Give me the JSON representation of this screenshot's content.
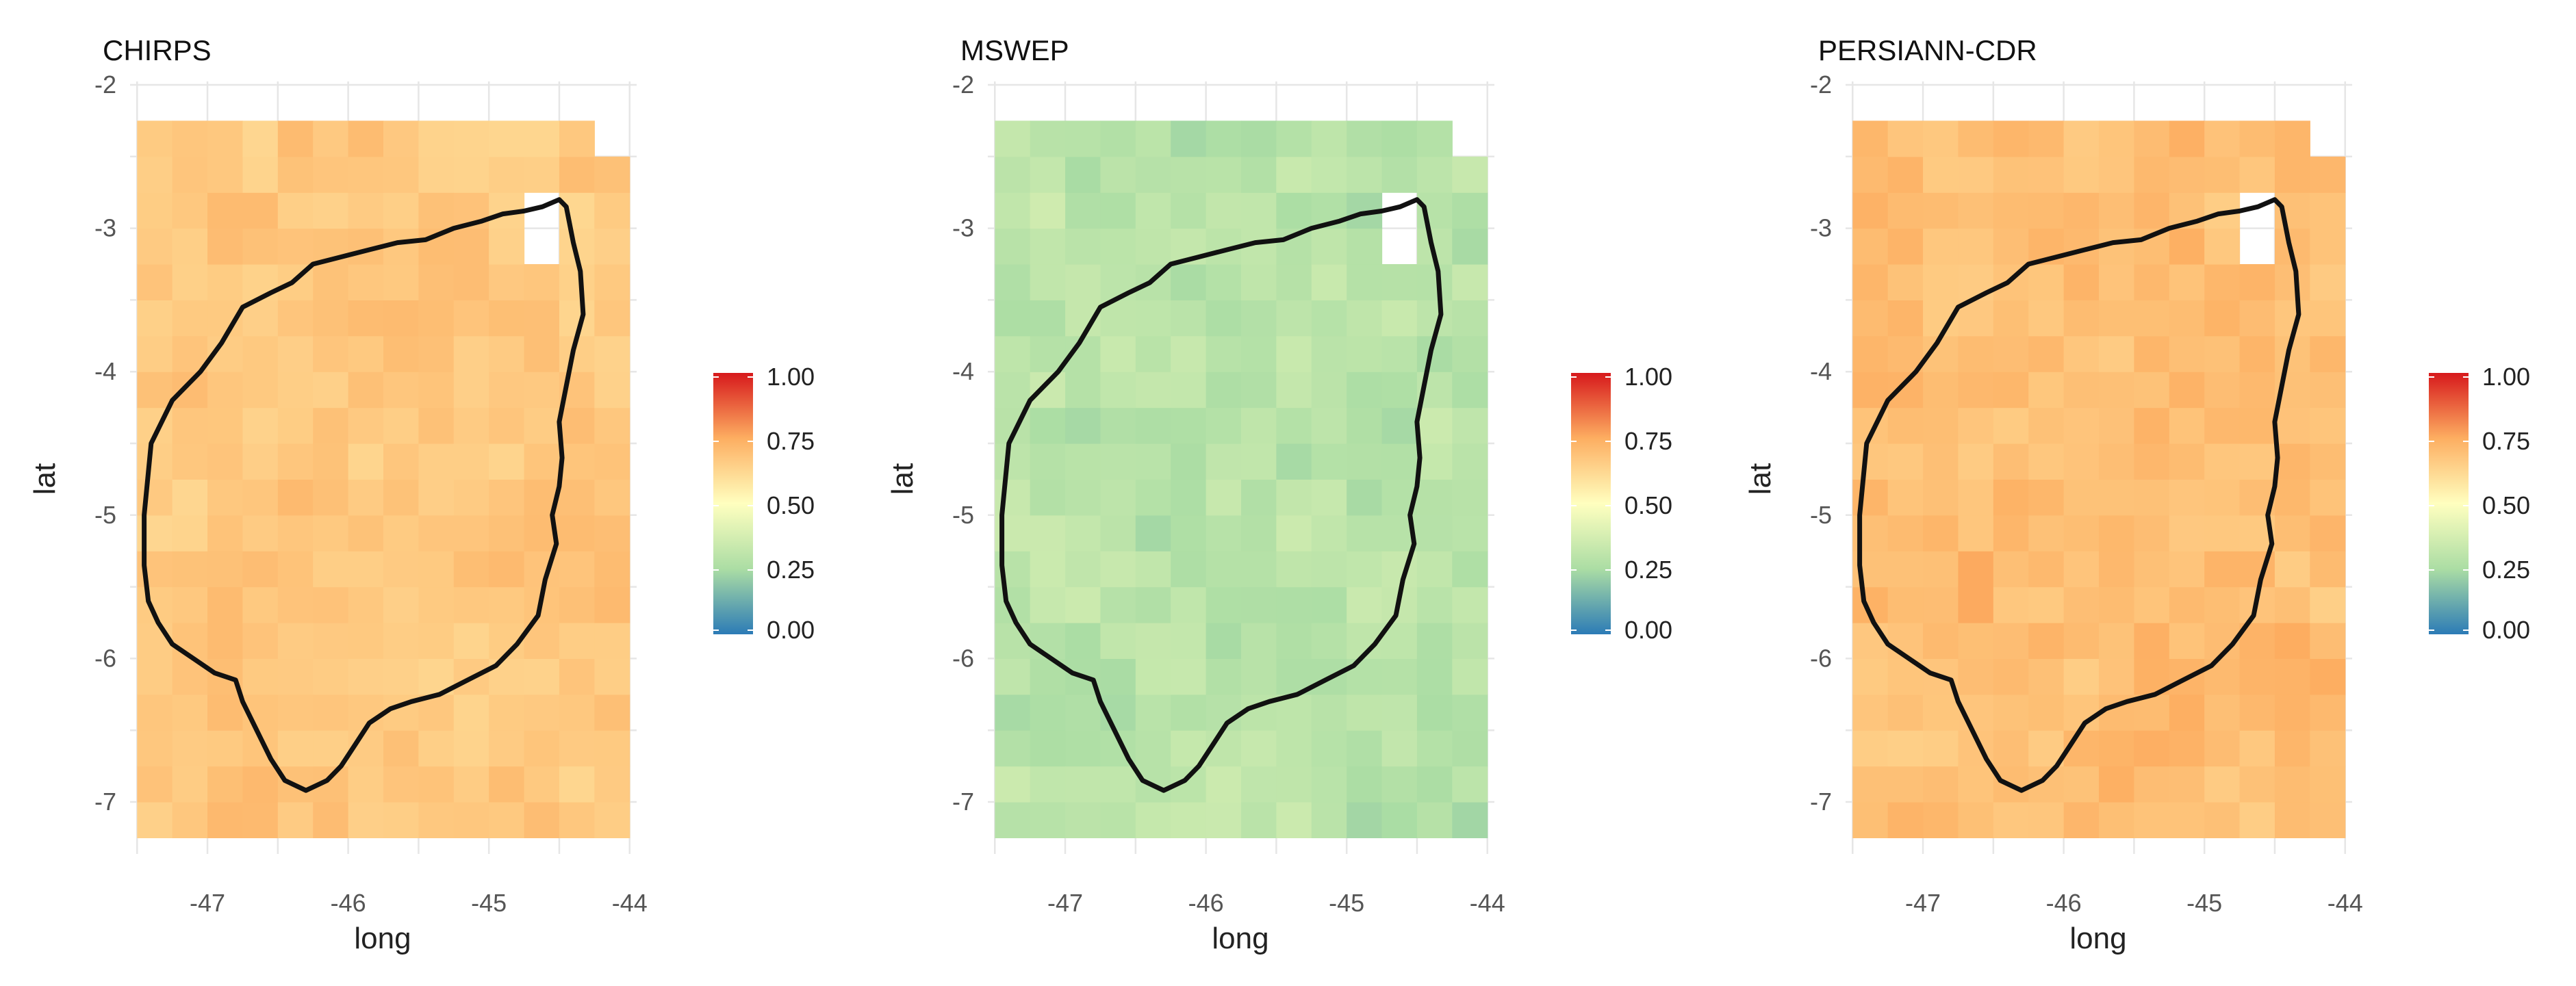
{
  "chart_data": [
    {
      "type": "heatmap",
      "title": "CHIRPS",
      "xlabel": "long",
      "ylabel": "lat",
      "xlim": [
        -47.55,
        -43.95
      ],
      "ylim": [
        -7.25,
        -2.25
      ],
      "x_ticks": [
        -47,
        -46,
        -45,
        -44
      ],
      "y_ticks": [
        -2,
        -3,
        -4,
        -5,
        -6,
        -7
      ],
      "grid": true,
      "legend_placement": "right",
      "legend_ticks": [
        "1.00",
        "0.75",
        "0.50",
        "0.25",
        "0.00"
      ],
      "scale": [
        0,
        1
      ],
      "colorscale": [
        "#2c7bb6",
        "#abdda4",
        "#ffffbf",
        "#fdae61",
        "#d7191c"
      ],
      "cell_size_deg": 0.25,
      "missing_cells": [
        "top-right corner, long -44.25 to -44.0, lat -2.5 to -2.25",
        "long -44.75 to -44.5, lat -3.25 to -2.75"
      ],
      "value_range": [
        0.62,
        0.72
      ],
      "mean_value": 0.67
    },
    {
      "type": "heatmap",
      "title": "MSWEP",
      "xlabel": "long",
      "ylabel": "lat",
      "xlim": [
        -47.55,
        -43.95
      ],
      "ylim": [
        -7.25,
        -2.25
      ],
      "x_ticks": [
        -47,
        -46,
        -45,
        -44
      ],
      "y_ticks": [
        -2,
        -3,
        -4,
        -5,
        -6,
        -7
      ],
      "grid": true,
      "legend_placement": "right",
      "legend_ticks": [
        "1.00",
        "0.75",
        "0.50",
        "0.25",
        "0.00"
      ],
      "scale": [
        0,
        1
      ],
      "colorscale": [
        "#2c7bb6",
        "#abdda4",
        "#ffffbf",
        "#fdae61",
        "#d7191c"
      ],
      "cell_size_deg": 0.25,
      "missing_cells": [
        "top-right corner, long -44.25 to -44.0, lat -2.5 to -2.25",
        "long -44.75 to -44.5, lat -3.25 to -2.75"
      ],
      "value_range": [
        0.22,
        0.36
      ],
      "mean_value": 0.29
    },
    {
      "type": "heatmap",
      "title": "PERSIANN-CDR",
      "xlabel": "long",
      "ylabel": "lat",
      "xlim": [
        -47.55,
        -43.95
      ],
      "ylim": [
        -7.25,
        -2.25
      ],
      "x_ticks": [
        -47,
        -46,
        -45,
        -44
      ],
      "y_ticks": [
        -2,
        -3,
        -4,
        -5,
        -6,
        -7
      ],
      "grid": true,
      "legend_placement": "right",
      "legend_ticks": [
        "1.00",
        "0.75",
        "0.50",
        "0.25",
        "0.00"
      ],
      "scale": [
        0,
        1
      ],
      "colorscale": [
        "#2c7bb6",
        "#abdda4",
        "#ffffbf",
        "#fdae61",
        "#d7191c"
      ],
      "cell_size_deg": 0.25,
      "missing_cells": [
        "top-right corner, long -44.25 to -44.0, lat -2.5 to -2.25",
        "long -44.75 to -44.5, lat -3.25 to -2.75"
      ],
      "value_range": [
        0.64,
        0.76
      ],
      "mean_value": 0.7
    }
  ],
  "basin_outline": {
    "color": "#111111",
    "lon": [
      -47.4,
      -47.25,
      -47.05,
      -46.9,
      -46.75,
      -46.55,
      -46.4,
      -46.25,
      -46.05,
      -45.85,
      -45.65,
      -45.45,
      -45.25,
      -45.05,
      -44.9,
      -44.75,
      -44.62,
      -44.5,
      -44.45,
      -44.4,
      -44.35,
      -44.33,
      -44.4,
      -44.45,
      -44.5,
      -44.48,
      -44.5,
      -44.55,
      -44.52,
      -44.6,
      -44.65,
      -44.8,
      -44.95,
      -45.15,
      -45.35,
      -45.55,
      -45.7,
      -45.85,
      -45.95,
      -46.05,
      -46.15,
      -46.3,
      -46.45,
      -46.55,
      -46.65,
      -46.75,
      -46.8,
      -46.95,
      -47.1,
      -47.25,
      -47.35,
      -47.42,
      -47.45,
      -47.45,
      -47.4
    ],
    "lat": [
      -4.5,
      -4.2,
      -4.0,
      -3.8,
      -3.55,
      -3.45,
      -3.38,
      -3.25,
      -3.2,
      -3.15,
      -3.1,
      -3.08,
      -3.0,
      -2.95,
      -2.9,
      -2.88,
      -2.85,
      -2.8,
      -2.85,
      -3.1,
      -3.3,
      -3.6,
      -3.85,
      -4.1,
      -4.35,
      -4.6,
      -4.8,
      -5.0,
      -5.2,
      -5.45,
      -5.7,
      -5.9,
      -6.05,
      -6.15,
      -6.25,
      -6.3,
      -6.35,
      -6.45,
      -6.6,
      -6.75,
      -6.85,
      -6.92,
      -6.85,
      -6.7,
      -6.5,
      -6.3,
      -6.15,
      -6.1,
      -6.0,
      -5.9,
      -5.75,
      -5.6,
      -5.35,
      -5.0,
      -4.5
    ]
  }
}
